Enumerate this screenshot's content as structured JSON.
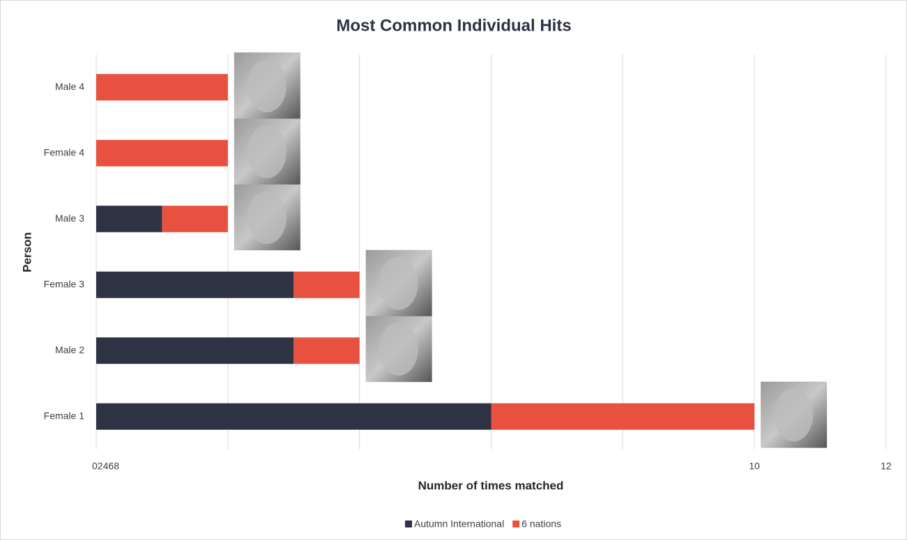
{
  "chart_data": {
    "type": "stacked-bar-horizontal",
    "title": "Most Common Individual Hits",
    "x_label": "Number of times matched",
    "y_label": "Person",
    "categories": [
      "Female 1",
      "Male 2",
      "Female 3",
      "Male 3",
      "Female 4",
      "Male 4"
    ],
    "series": [
      {
        "name": "Autumn International",
        "color": "#2e3344",
        "values": [
          6,
          3,
          3,
          1,
          0,
          0
        ]
      },
      {
        "name": "6 nations",
        "color": "#e8503f",
        "values": [
          4,
          1,
          1,
          1,
          2,
          2
        ]
      }
    ],
    "xlim": [
      0,
      12
    ],
    "xticks": [
      0,
      2,
      4,
      6,
      8,
      10,
      12
    ],
    "grid": true,
    "legend": "bottom"
  }
}
